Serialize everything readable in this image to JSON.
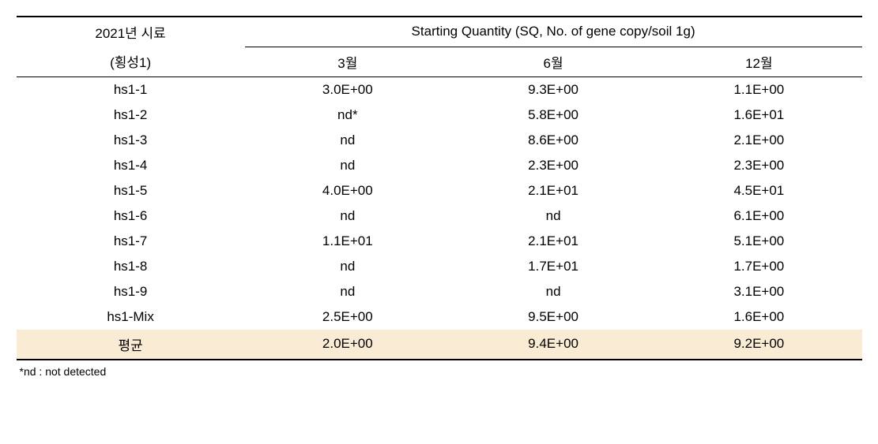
{
  "table": {
    "header": {
      "sample_label_line1": "2021년 시료",
      "sample_label_line2": "(횡성1)",
      "sq_span_label": "Starting Quantity (SQ, No. of gene copy/soil 1g)",
      "months": [
        "3월",
        "6월",
        "12월"
      ]
    },
    "rows": [
      {
        "sample": "hs1-1",
        "m3": "3.0E+00",
        "m6": "9.3E+00",
        "m12": "1.1E+00"
      },
      {
        "sample": "hs1-2",
        "m3": "nd*",
        "m6": "5.8E+00",
        "m12": "1.6E+01"
      },
      {
        "sample": "hs1-3",
        "m3": "nd",
        "m6": "8.6E+00",
        "m12": "2.1E+00"
      },
      {
        "sample": "hs1-4",
        "m3": "nd",
        "m6": "2.3E+00",
        "m12": "2.3E+00"
      },
      {
        "sample": "hs1-5",
        "m3": "4.0E+00",
        "m6": "2.1E+01",
        "m12": "4.5E+01"
      },
      {
        "sample": "hs1-6",
        "m3": "nd",
        "m6": "nd",
        "m12": "6.1E+00"
      },
      {
        "sample": "hs1-7",
        "m3": "1.1E+01",
        "m6": "2.1E+01",
        "m12": "5.1E+00"
      },
      {
        "sample": "hs1-8",
        "m3": "nd",
        "m6": "1.7E+01",
        "m12": "1.7E+00"
      },
      {
        "sample": "hs1-9",
        "m3": "nd",
        "m6": "nd",
        "m12": "3.1E+00"
      },
      {
        "sample": "hs1-Mix",
        "m3": "2.5E+00",
        "m6": "9.5E+00",
        "m12": "1.6E+00"
      }
    ],
    "average_row": {
      "label": "평균",
      "m3": "2.0E+00",
      "m6": "9.4E+00",
      "m12": "9.2E+00"
    },
    "footnote": "*nd : not detected",
    "colors": {
      "highlight_bg": "#faecd4",
      "border": "#000000",
      "background": "#ffffff",
      "text": "#000000"
    },
    "font_size_pt": 13,
    "footnote_font_size_pt": 10
  }
}
